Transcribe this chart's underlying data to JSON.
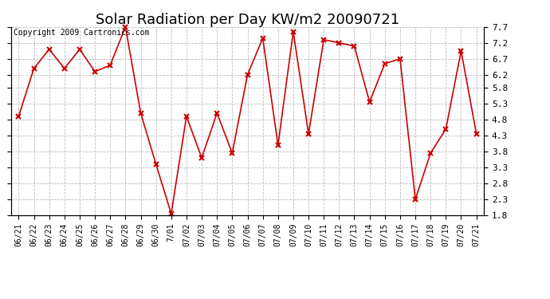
{
  "title": "Solar Radiation per Day KW/m2 20090721",
  "copyright_text": "Copyright 2009 Cartronics.com",
  "labels": [
    "06/21",
    "06/22",
    "06/23",
    "06/24",
    "06/25",
    "06/26",
    "06/27",
    "06/28",
    "06/29",
    "06/30",
    "7/01",
    "07/02",
    "07/03",
    "07/04",
    "07/05",
    "07/06",
    "07/07",
    "07/08",
    "07/09",
    "07/10",
    "07/11",
    "07/12",
    "07/13",
    "07/14",
    "07/15",
    "07/16",
    "07/17",
    "07/18",
    "07/19",
    "07/20",
    "07/21"
  ],
  "values": [
    4.9,
    6.4,
    7.0,
    6.4,
    7.0,
    6.3,
    6.5,
    7.7,
    5.0,
    3.4,
    1.85,
    4.9,
    3.6,
    5.0,
    3.75,
    6.2,
    7.35,
    4.0,
    7.55,
    4.35,
    7.3,
    7.2,
    7.1,
    5.35,
    6.55,
    6.7,
    2.3,
    3.75,
    4.5,
    6.95,
    4.35
  ],
  "ylim": [
    1.8,
    7.7
  ],
  "yticks": [
    1.8,
    2.3,
    2.8,
    3.3,
    3.8,
    4.3,
    4.8,
    5.3,
    5.8,
    6.2,
    6.7,
    7.2,
    7.7
  ],
  "line_color": "#cc0000",
  "marker": "x",
  "marker_size": 4,
  "background_color": "#ffffff",
  "grid_color": "#bbbbbb",
  "title_fontsize": 13,
  "copyright_fontsize": 7,
  "tick_fontsize": 8,
  "xtick_fontsize": 7
}
